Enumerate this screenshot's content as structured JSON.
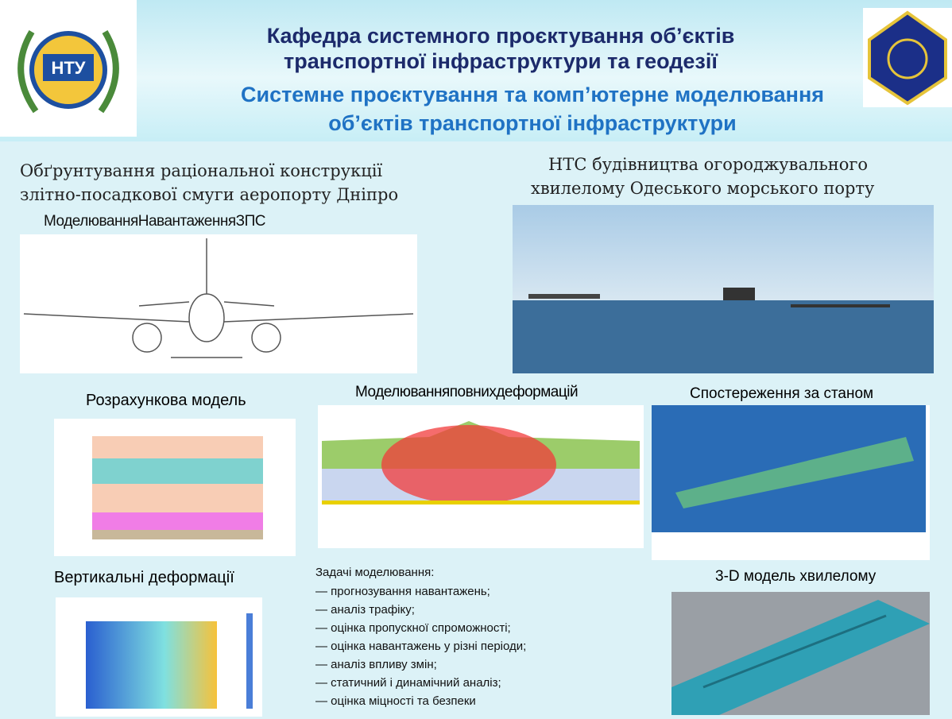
{
  "header": {
    "title": [
      "Кафедра системного проєктування об’єктів",
      "транспортної інфраструктури та геодезії"
    ],
    "subtitle": [
      "Системне проєктування та комп’ютерне моделювання",
      "об’єктів транспортної інфраструктури"
    ],
    "logo": "НТУ"
  },
  "left": {
    "heading": [
      "Обґрунтування раціональної конструкції",
      "злітно-посадкової смуги аеропорту Дніпро"
    ],
    "caption": "МоделюванняНавантаженняЗПС"
  },
  "right": {
    "heading": [
      "НТС будівництва огороджувального",
      "хвилелому Одеського морського порту"
    ]
  },
  "panels": {
    "calc_model": "Розрахункова модель",
    "full_deformation": "Моделюванняповнихдеформацій",
    "monitoring": "Спостереження за станом",
    "vertical_deformation": "Вертикальні деформації",
    "model_3d": "3-D модель хвилелому"
  },
  "tasks": {
    "title": "Задачі моделювання:",
    "items": [
      "— прогнозування навантажень;",
      "— аналіз трафіку;",
      "— оцінка пропускної спроможності;",
      "— оцінка навантажень у різні періоди;",
      "— аналіз впливу змін;",
      "— статичний і динамічний аналіз;",
      "— оцінка міцності та безпеки"
    ]
  }
}
